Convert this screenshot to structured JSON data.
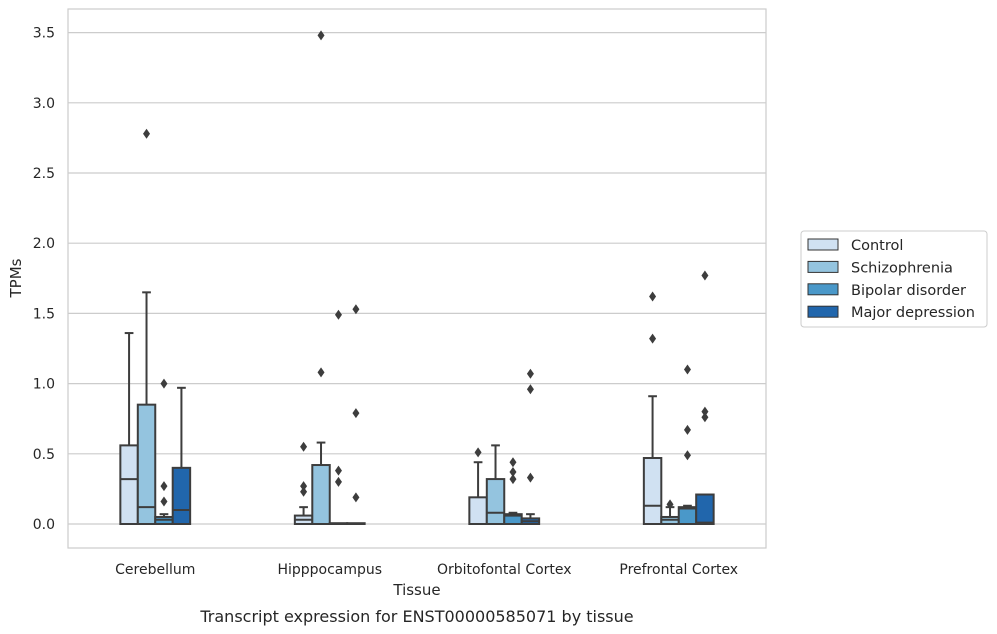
{
  "caption": "Transcript expression for ENST00000585071 by tissue",
  "chart_data": {
    "type": "boxplot",
    "xlabel": "Tissue",
    "ylabel": "TPMs",
    "ylim": [
      -0.17,
      3.66
    ],
    "yticks": [
      "0.0",
      "0.5",
      "1.0",
      "1.5",
      "2.0",
      "2.5",
      "3.0",
      "3.5"
    ],
    "grid": "horizontal",
    "legend_position": "right",
    "categories": [
      "Cerebellum",
      "Hipppocampus",
      "Orbitofontal Cortex",
      "Prefrontal Cortex"
    ],
    "series": [
      {
        "name": "Control",
        "color": "#d0e1f2",
        "boxes": [
          {
            "min": 0,
            "q1": 0,
            "median": 0.32,
            "q3": 0.56,
            "max": 1.36,
            "outliers": []
          },
          {
            "min": 0,
            "q1": 0,
            "median": 0.03,
            "q3": 0.06,
            "max": 0.12,
            "outliers": [
              0.55,
              0.27,
              0.23
            ]
          },
          {
            "min": 0,
            "q1": 0,
            "median": 0.0,
            "q3": 0.19,
            "max": 0.44,
            "outliers": [
              0.51
            ]
          },
          {
            "min": 0,
            "q1": 0,
            "median": 0.13,
            "q3": 0.47,
            "max": 0.91,
            "outliers": [
              1.62,
              1.32
            ]
          }
        ]
      },
      {
        "name": "Schizophrenia",
        "color": "#94c4df",
        "boxes": [
          {
            "min": 0,
            "q1": 0,
            "median": 0.12,
            "q3": 0.85,
            "max": 1.65,
            "outliers": [
              2.78
            ]
          },
          {
            "min": 0,
            "q1": 0,
            "median": 0.0,
            "q3": 0.42,
            "max": 0.58,
            "outliers": [
              3.48,
              1.08
            ]
          },
          {
            "min": 0,
            "q1": 0,
            "median": 0.08,
            "q3": 0.32,
            "max": 0.56,
            "outliers": []
          },
          {
            "min": 0,
            "q1": 0,
            "median": 0.03,
            "q3": 0.05,
            "max": 0.12,
            "outliers": [
              0.14
            ]
          }
        ]
      },
      {
        "name": "Bipolar disorder",
        "color": "#4a98c9",
        "boxes": [
          {
            "min": 0,
            "q1": 0,
            "median": 0.03,
            "q3": 0.05,
            "max": 0.07,
            "outliers": [
              1.0,
              0.27,
              0.16
            ]
          },
          {
            "min": 0,
            "q1": 0,
            "median": 0.0,
            "q3": 0.0,
            "max": 0.0,
            "outliers": [
              1.49,
              0.38,
              0.3
            ]
          },
          {
            "min": 0,
            "q1": 0,
            "median": 0.06,
            "q3": 0.07,
            "max": 0.08,
            "outliers": [
              0.44,
              0.37,
              0.32
            ]
          },
          {
            "min": 0,
            "q1": 0,
            "median": 0.11,
            "q3": 0.12,
            "max": 0.13,
            "outliers": [
              1.1,
              0.67,
              0.49
            ]
          }
        ]
      },
      {
        "name": "Major depression",
        "color": "#2166ac",
        "boxes": [
          {
            "min": 0,
            "q1": 0,
            "median": 0.1,
            "q3": 0.4,
            "max": 0.97,
            "outliers": []
          },
          {
            "min": 0,
            "q1": 0,
            "median": 0.0,
            "q3": 0.0,
            "max": 0.0,
            "outliers": [
              1.53,
              0.79,
              0.19
            ]
          },
          {
            "min": 0,
            "q1": 0,
            "median": 0.02,
            "q3": 0.04,
            "max": 0.07,
            "outliers": [
              1.07,
              0.96,
              0.33
            ]
          },
          {
            "min": 0,
            "q1": 0,
            "median": 0.01,
            "q3": 0.21,
            "max": 0.21,
            "outliers": [
              1.77,
              0.8,
              0.76
            ]
          }
        ]
      }
    ]
  }
}
